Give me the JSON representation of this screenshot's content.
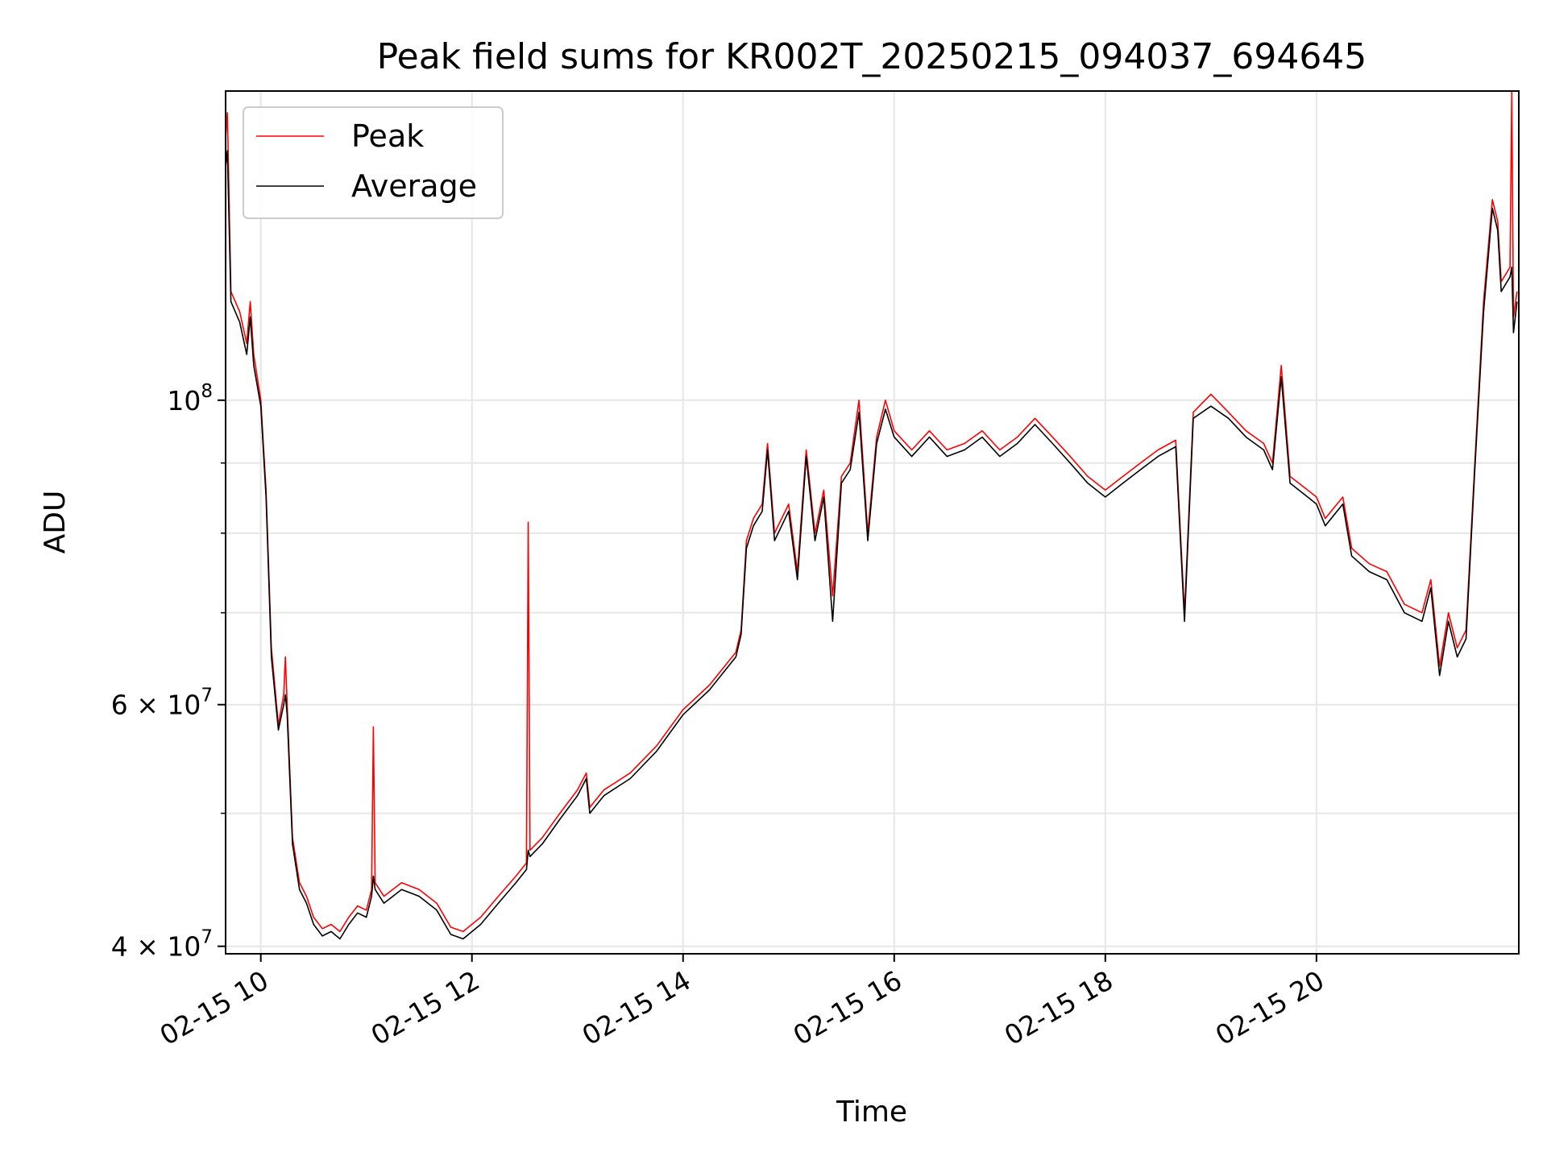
{
  "chart_data": {
    "type": "line",
    "title": "Peak field sums for KR002T_20250215_094037_694645",
    "xlabel": "Time",
    "ylabel": "ADU",
    "x_scale": "time",
    "y_scale": "log",
    "xlim": [
      "2025-02-15 09:40",
      "2025-02-15 21:55"
    ],
    "ylim": [
      39500000,
      168000000
    ],
    "x_ticks": [
      {
        "t": "2025-02-15 10:00",
        "label": "02-15 10"
      },
      {
        "t": "2025-02-15 12:00",
        "label": "02-15 12"
      },
      {
        "t": "2025-02-15 14:00",
        "label": "02-15 14"
      },
      {
        "t": "2025-02-15 16:00",
        "label": "02-15 16"
      },
      {
        "t": "2025-02-15 18:00",
        "label": "02-15 18"
      },
      {
        "t": "2025-02-15 20:00",
        "label": "02-15 20"
      }
    ],
    "y_ticks_major": [
      {
        "value": 40000000,
        "base": "4 × 10",
        "exp": "7"
      },
      {
        "value": 60000000,
        "base": "6 × 10",
        "exp": "7"
      },
      {
        "value": 100000000,
        "base": "10",
        "exp": "8"
      }
    ],
    "y_ticks_minor": [
      50000000,
      70000000,
      80000000,
      90000000
    ],
    "grid": true,
    "legend_position": "top-left",
    "series": [
      {
        "name": "Peak",
        "color": "#ff0000",
        "points": [
          [
            "2025-02-15 09:40",
            155000000
          ],
          [
            "2025-02-15 09:41",
            162000000
          ],
          [
            "2025-02-15 09:43",
            120000000
          ],
          [
            "2025-02-15 09:48",
            116000000
          ],
          [
            "2025-02-15 09:52",
            110000000
          ],
          [
            "2025-02-15 09:54",
            118000000
          ],
          [
            "2025-02-15 09:56",
            108000000
          ],
          [
            "2025-02-15 10:00",
            100000000
          ],
          [
            "2025-02-15 10:03",
            86000000
          ],
          [
            "2025-02-15 10:06",
            66000000
          ],
          [
            "2025-02-15 10:10",
            58000000
          ],
          [
            "2025-02-15 10:13",
            61000000
          ],
          [
            "2025-02-15 10:14",
            65000000
          ],
          [
            "2025-02-15 10:15",
            60000000
          ],
          [
            "2025-02-15 10:18",
            48000000
          ],
          [
            "2025-02-15 10:22",
            44500000
          ],
          [
            "2025-02-15 10:26",
            43500000
          ],
          [
            "2025-02-15 10:30",
            42000000
          ],
          [
            "2025-02-15 10:35",
            41200000
          ],
          [
            "2025-02-15 10:40",
            41500000
          ],
          [
            "2025-02-15 10:45",
            41000000
          ],
          [
            "2025-02-15 10:50",
            42000000
          ],
          [
            "2025-02-15 10:55",
            42800000
          ],
          [
            "2025-02-15 11:00",
            42500000
          ],
          [
            "2025-02-15 11:03",
            44000000
          ],
          [
            "2025-02-15 11:04",
            57800000
          ],
          [
            "2025-02-15 11:05",
            44500000
          ],
          [
            "2025-02-15 11:10",
            43500000
          ],
          [
            "2025-02-15 11:20",
            44500000
          ],
          [
            "2025-02-15 11:30",
            44000000
          ],
          [
            "2025-02-15 11:40",
            43000000
          ],
          [
            "2025-02-15 11:48",
            41300000
          ],
          [
            "2025-02-15 11:55",
            41000000
          ],
          [
            "2025-02-15 12:05",
            42000000
          ],
          [
            "2025-02-15 12:15",
            43500000
          ],
          [
            "2025-02-15 12:25",
            45000000
          ],
          [
            "2025-02-15 12:31",
            46000000
          ],
          [
            "2025-02-15 12:32",
            81500000
          ],
          [
            "2025-02-15 12:33",
            47000000
          ],
          [
            "2025-02-15 12:40",
            48000000
          ],
          [
            "2025-02-15 12:50",
            50000000
          ],
          [
            "2025-02-15 13:00",
            52000000
          ],
          [
            "2025-02-15 13:05",
            53500000
          ],
          [
            "2025-02-15 13:07",
            50500000
          ],
          [
            "2025-02-15 13:15",
            52000000
          ],
          [
            "2025-02-15 13:30",
            53500000
          ],
          [
            "2025-02-15 13:45",
            56000000
          ],
          [
            "2025-02-15 14:00",
            59500000
          ],
          [
            "2025-02-15 14:15",
            62000000
          ],
          [
            "2025-02-15 14:30",
            65500000
          ],
          [
            "2025-02-15 14:33",
            68000000
          ],
          [
            "2025-02-15 14:36",
            79000000
          ],
          [
            "2025-02-15 14:40",
            82000000
          ],
          [
            "2025-02-15 14:45",
            84000000
          ],
          [
            "2025-02-15 14:48",
            93000000
          ],
          [
            "2025-02-15 14:52",
            80000000
          ],
          [
            "2025-02-15 15:00",
            84000000
          ],
          [
            "2025-02-15 15:05",
            75000000
          ],
          [
            "2025-02-15 15:10",
            92000000
          ],
          [
            "2025-02-15 15:15",
            80000000
          ],
          [
            "2025-02-15 15:20",
            86000000
          ],
          [
            "2025-02-15 15:25",
            72000000
          ],
          [
            "2025-02-15 15:30",
            88000000
          ],
          [
            "2025-02-15 15:35",
            90000000
          ],
          [
            "2025-02-15 15:40",
            100000000
          ],
          [
            "2025-02-15 15:45",
            80000000
          ],
          [
            "2025-02-15 15:50",
            94000000
          ],
          [
            "2025-02-15 15:55",
            100000000
          ],
          [
            "2025-02-15 16:00",
            95000000
          ],
          [
            "2025-02-15 16:10",
            92000000
          ],
          [
            "2025-02-15 16:20",
            95000000
          ],
          [
            "2025-02-15 16:30",
            92000000
          ],
          [
            "2025-02-15 16:40",
            93000000
          ],
          [
            "2025-02-15 16:50",
            95000000
          ],
          [
            "2025-02-15 17:00",
            92000000
          ],
          [
            "2025-02-15 17:10",
            94000000
          ],
          [
            "2025-02-15 17:20",
            97000000
          ],
          [
            "2025-02-15 17:30",
            94000000
          ],
          [
            "2025-02-15 17:40",
            91000000
          ],
          [
            "2025-02-15 17:50",
            88000000
          ],
          [
            "2025-02-15 18:00",
            86000000
          ],
          [
            "2025-02-15 18:10",
            88000000
          ],
          [
            "2025-02-15 18:20",
            90000000
          ],
          [
            "2025-02-15 18:30",
            92000000
          ],
          [
            "2025-02-15 18:40",
            93500000
          ],
          [
            "2025-02-15 18:45",
            70000000
          ],
          [
            "2025-02-15 18:50",
            98000000
          ],
          [
            "2025-02-15 19:00",
            101000000
          ],
          [
            "2025-02-15 19:10",
            98000000
          ],
          [
            "2025-02-15 19:20",
            95000000
          ],
          [
            "2025-02-15 19:30",
            93000000
          ],
          [
            "2025-02-15 19:35",
            90000000
          ],
          [
            "2025-02-15 19:40",
            106000000
          ],
          [
            "2025-02-15 19:45",
            88000000
          ],
          [
            "2025-02-15 19:55",
            86000000
          ],
          [
            "2025-02-15 20:00",
            85000000
          ],
          [
            "2025-02-15 20:05",
            82000000
          ],
          [
            "2025-02-15 20:15",
            85000000
          ],
          [
            "2025-02-15 20:20",
            78000000
          ],
          [
            "2025-02-15 20:30",
            76000000
          ],
          [
            "2025-02-15 20:40",
            75000000
          ],
          [
            "2025-02-15 20:50",
            71000000
          ],
          [
            "2025-02-15 21:00",
            70000000
          ],
          [
            "2025-02-15 21:05",
            74000000
          ],
          [
            "2025-02-15 21:10",
            64000000
          ],
          [
            "2025-02-15 21:15",
            70000000
          ],
          [
            "2025-02-15 21:20",
            66000000
          ],
          [
            "2025-02-15 21:25",
            68000000
          ],
          [
            "2025-02-15 21:30",
            90000000
          ],
          [
            "2025-02-15 21:35",
            118000000
          ],
          [
            "2025-02-15 21:40",
            140000000
          ],
          [
            "2025-02-15 21:43",
            135000000
          ],
          [
            "2025-02-15 21:45",
            122000000
          ],
          [
            "2025-02-15 21:50",
            125000000
          ],
          [
            "2025-02-15 21:51",
            168000000
          ],
          [
            "2025-02-15 21:52",
            115000000
          ],
          [
            "2025-02-15 21:54",
            120000000
          ]
        ]
      },
      {
        "name": "Average",
        "color": "#000000",
        "points": [
          [
            "2025-02-15 09:40",
            148000000
          ],
          [
            "2025-02-15 09:41",
            152000000
          ],
          [
            "2025-02-15 09:43",
            118000000
          ],
          [
            "2025-02-15 09:48",
            114000000
          ],
          [
            "2025-02-15 09:52",
            108000000
          ],
          [
            "2025-02-15 09:54",
            115000000
          ],
          [
            "2025-02-15 09:56",
            106000000
          ],
          [
            "2025-02-15 10:00",
            99000000
          ],
          [
            "2025-02-15 10:03",
            85000000
          ],
          [
            "2025-02-15 10:06",
            65000000
          ],
          [
            "2025-02-15 10:10",
            57500000
          ],
          [
            "2025-02-15 10:13",
            60000000
          ],
          [
            "2025-02-15 10:14",
            61000000
          ],
          [
            "2025-02-15 10:15",
            59000000
          ],
          [
            "2025-02-15 10:18",
            47500000
          ],
          [
            "2025-02-15 10:22",
            44000000
          ],
          [
            "2025-02-15 10:26",
            43000000
          ],
          [
            "2025-02-15 10:30",
            41500000
          ],
          [
            "2025-02-15 10:35",
            40700000
          ],
          [
            "2025-02-15 10:40",
            41000000
          ],
          [
            "2025-02-15 10:45",
            40500000
          ],
          [
            "2025-02-15 10:50",
            41500000
          ],
          [
            "2025-02-15 10:55",
            42300000
          ],
          [
            "2025-02-15 11:00",
            42000000
          ],
          [
            "2025-02-15 11:03",
            43500000
          ],
          [
            "2025-02-15 11:04",
            45000000
          ],
          [
            "2025-02-15 11:05",
            44000000
          ],
          [
            "2025-02-15 11:10",
            43000000
          ],
          [
            "2025-02-15 11:20",
            44000000
          ],
          [
            "2025-02-15 11:30",
            43500000
          ],
          [
            "2025-02-15 11:40",
            42500000
          ],
          [
            "2025-02-15 11:48",
            40800000
          ],
          [
            "2025-02-15 11:55",
            40500000
          ],
          [
            "2025-02-15 12:05",
            41500000
          ],
          [
            "2025-02-15 12:15",
            43000000
          ],
          [
            "2025-02-15 12:25",
            44500000
          ],
          [
            "2025-02-15 12:31",
            45500000
          ],
          [
            "2025-02-15 12:32",
            47000000
          ],
          [
            "2025-02-15 12:33",
            46500000
          ],
          [
            "2025-02-15 12:40",
            47500000
          ],
          [
            "2025-02-15 12:50",
            49500000
          ],
          [
            "2025-02-15 13:00",
            51500000
          ],
          [
            "2025-02-15 13:05",
            53000000
          ],
          [
            "2025-02-15 13:07",
            50000000
          ],
          [
            "2025-02-15 13:15",
            51500000
          ],
          [
            "2025-02-15 13:30",
            53000000
          ],
          [
            "2025-02-15 13:45",
            55500000
          ],
          [
            "2025-02-15 14:00",
            59000000
          ],
          [
            "2025-02-15 14:15",
            61500000
          ],
          [
            "2025-02-15 14:30",
            65000000
          ],
          [
            "2025-02-15 14:33",
            67500000
          ],
          [
            "2025-02-15 14:36",
            78000000
          ],
          [
            "2025-02-15 14:40",
            81000000
          ],
          [
            "2025-02-15 14:45",
            83000000
          ],
          [
            "2025-02-15 14:48",
            92000000
          ],
          [
            "2025-02-15 14:52",
            79000000
          ],
          [
            "2025-02-15 15:00",
            83000000
          ],
          [
            "2025-02-15 15:05",
            74000000
          ],
          [
            "2025-02-15 15:10",
            91000000
          ],
          [
            "2025-02-15 15:15",
            79000000
          ],
          [
            "2025-02-15 15:20",
            85000000
          ],
          [
            "2025-02-15 15:25",
            69000000
          ],
          [
            "2025-02-15 15:30",
            87000000
          ],
          [
            "2025-02-15 15:35",
            89000000
          ],
          [
            "2025-02-15 15:40",
            98000000
          ],
          [
            "2025-02-15 15:45",
            79000000
          ],
          [
            "2025-02-15 15:50",
            93000000
          ],
          [
            "2025-02-15 15:55",
            98500000
          ],
          [
            "2025-02-15 16:00",
            94000000
          ],
          [
            "2025-02-15 16:10",
            91000000
          ],
          [
            "2025-02-15 16:20",
            94000000
          ],
          [
            "2025-02-15 16:30",
            91000000
          ],
          [
            "2025-02-15 16:40",
            92000000
          ],
          [
            "2025-02-15 16:50",
            94000000
          ],
          [
            "2025-02-15 17:00",
            91000000
          ],
          [
            "2025-02-15 17:10",
            93000000
          ],
          [
            "2025-02-15 17:20",
            96000000
          ],
          [
            "2025-02-15 17:30",
            93000000
          ],
          [
            "2025-02-15 17:40",
            90000000
          ],
          [
            "2025-02-15 17:50",
            87000000
          ],
          [
            "2025-02-15 18:00",
            85000000
          ],
          [
            "2025-02-15 18:10",
            87000000
          ],
          [
            "2025-02-15 18:20",
            89000000
          ],
          [
            "2025-02-15 18:30",
            91000000
          ],
          [
            "2025-02-15 18:40",
            92500000
          ],
          [
            "2025-02-15 18:45",
            69000000
          ],
          [
            "2025-02-15 18:50",
            97000000
          ],
          [
            "2025-02-15 19:00",
            99000000
          ],
          [
            "2025-02-15 19:10",
            97000000
          ],
          [
            "2025-02-15 19:20",
            94000000
          ],
          [
            "2025-02-15 19:30",
            92000000
          ],
          [
            "2025-02-15 19:35",
            89000000
          ],
          [
            "2025-02-15 19:40",
            104000000
          ],
          [
            "2025-02-15 19:45",
            87000000
          ],
          [
            "2025-02-15 19:55",
            85000000
          ],
          [
            "2025-02-15 20:00",
            84000000
          ],
          [
            "2025-02-15 20:05",
            81000000
          ],
          [
            "2025-02-15 20:15",
            84000000
          ],
          [
            "2025-02-15 20:20",
            77000000
          ],
          [
            "2025-02-15 20:30",
            75000000
          ],
          [
            "2025-02-15 20:40",
            74000000
          ],
          [
            "2025-02-15 20:50",
            70000000
          ],
          [
            "2025-02-15 21:00",
            69000000
          ],
          [
            "2025-02-15 21:05",
            73000000
          ],
          [
            "2025-02-15 21:10",
            63000000
          ],
          [
            "2025-02-15 21:15",
            69000000
          ],
          [
            "2025-02-15 21:20",
            65000000
          ],
          [
            "2025-02-15 21:25",
            67000000
          ],
          [
            "2025-02-15 21:30",
            89000000
          ],
          [
            "2025-02-15 21:35",
            116000000
          ],
          [
            "2025-02-15 21:40",
            138000000
          ],
          [
            "2025-02-15 21:43",
            133000000
          ],
          [
            "2025-02-15 21:45",
            120000000
          ],
          [
            "2025-02-15 21:50",
            123000000
          ],
          [
            "2025-02-15 21:51",
            125000000
          ],
          [
            "2025-02-15 21:52",
            112000000
          ],
          [
            "2025-02-15 21:54",
            118000000
          ]
        ]
      }
    ]
  }
}
